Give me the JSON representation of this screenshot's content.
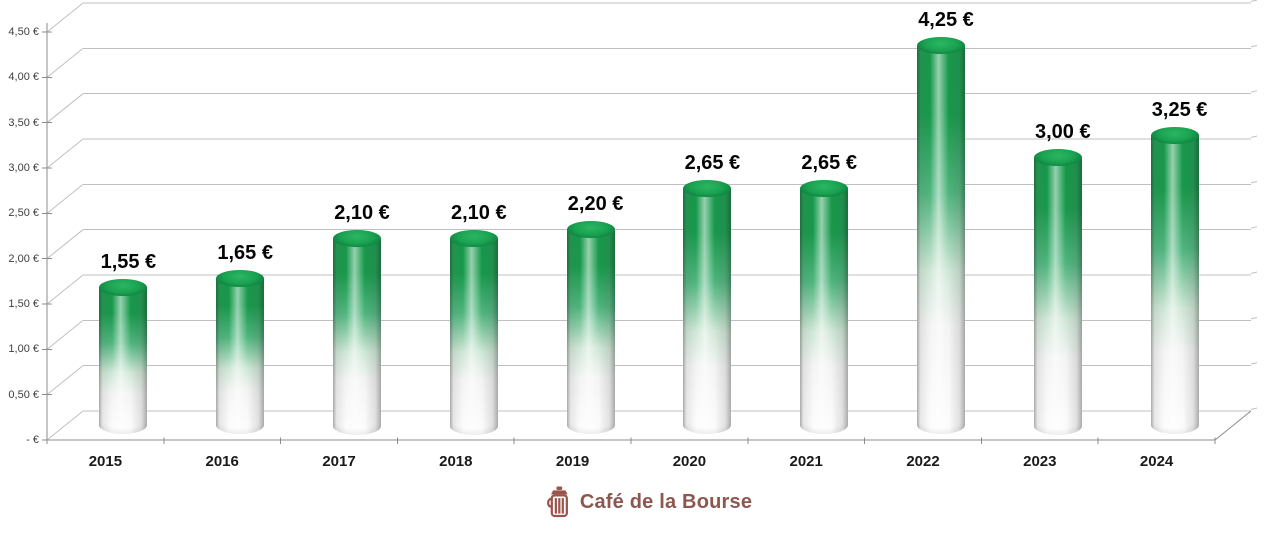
{
  "chart_data": {
    "type": "bar",
    "style": "3d-cylinder",
    "title": "",
    "categories": [
      "2015",
      "2016",
      "2017",
      "2018",
      "2019",
      "2020",
      "2021",
      "2022",
      "2023",
      "2024"
    ],
    "values": [
      1.55,
      1.65,
      2.1,
      2.1,
      2.2,
      2.65,
      2.65,
      4.25,
      3.0,
      3.25
    ],
    "value_labels": [
      "1,55 €",
      "1,65 €",
      "2,10 €",
      "2,10 €",
      "2,20 €",
      "2,65 €",
      "2,65 €",
      "4,25 €",
      "3,00 €",
      "3,25 €"
    ],
    "y_tick_labels": [
      "- €",
      "0,50 €",
      "1,00 €",
      "1,50 €",
      "2,00 €",
      "2,50 €",
      "3,00 €",
      "3,50 €",
      "4,00 €",
      "4,50 €"
    ],
    "xlabel": "",
    "ylabel": "",
    "ylim": [
      0,
      4.5
    ],
    "y_tick_step": 0.5,
    "grid": true,
    "legend": "none",
    "currency": "EUR",
    "colors": {
      "bar_top_green": "#16984a",
      "bar_cap_dark_green": "#0a6b34",
      "bar_bottom_white": "#fdfdfd",
      "gridline_gray": "#c0c0c0",
      "axis_gray": "#8c8c8c",
      "label_black": "#050505"
    }
  },
  "footer": {
    "logo_text": "Café de la Bourse",
    "logo_icon": "coffee-press-icon",
    "logo_color": "#8d574f"
  }
}
